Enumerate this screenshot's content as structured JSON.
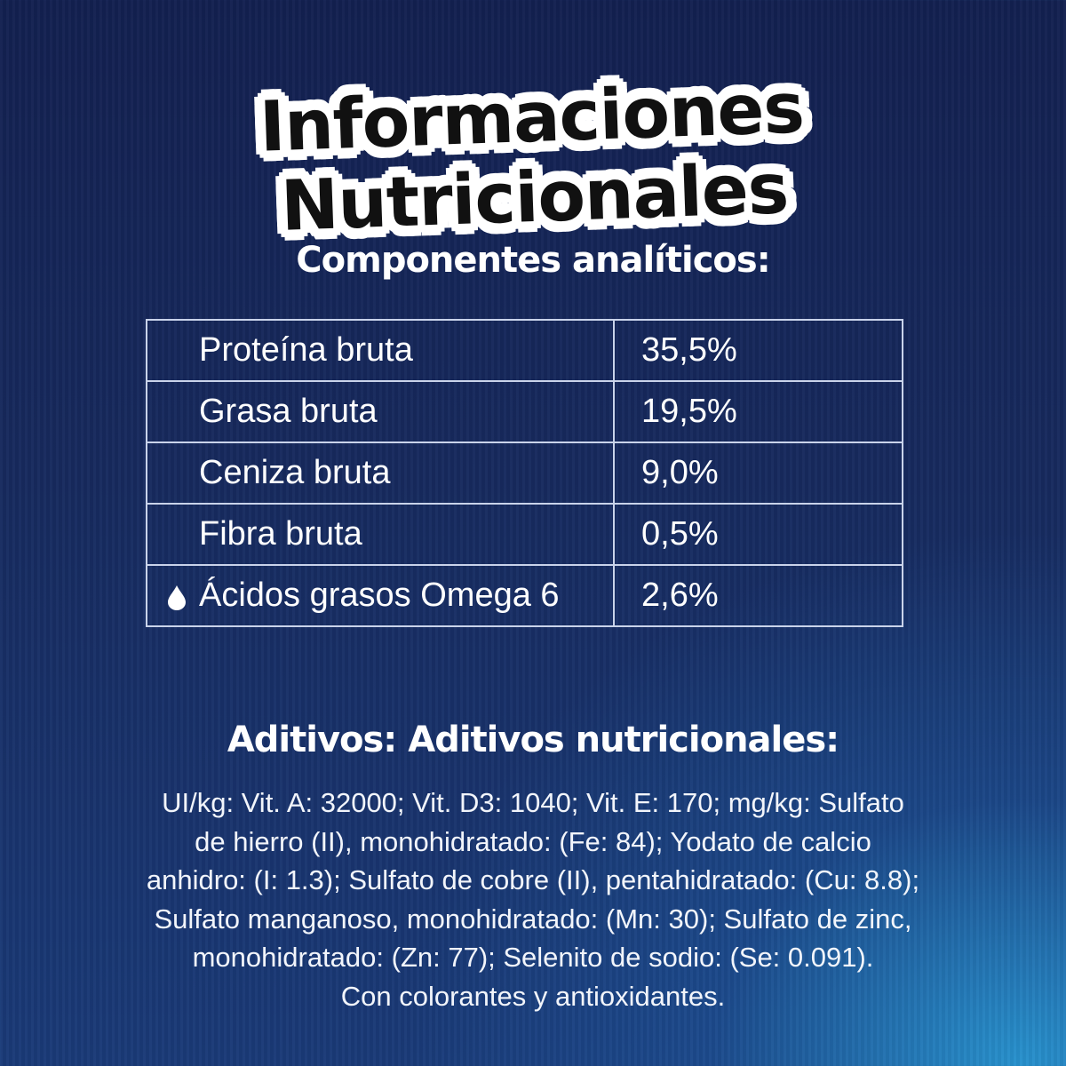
{
  "title": "Informaciones Nutricionales",
  "components": {
    "heading": "Componentes analíticos:",
    "rows": [
      {
        "label": "Proteína bruta",
        "value": "35,5%"
      },
      {
        "label": "Grasa bruta",
        "value": "19,5%"
      },
      {
        "label": "Ceniza bruta",
        "value": "9,0%"
      },
      {
        "label": "Fibra bruta",
        "value": "0,5%"
      },
      {
        "label": "Ácidos grasos Omega 6",
        "value": "2,6%",
        "icon": "water-drop-icon"
      }
    ]
  },
  "additives": {
    "heading": "Aditivos: Aditivos nutricionales:",
    "lines": [
      "UI/kg: Vit. A: 32000; Vit. D3: 1040; Vit. E: 170; mg/kg: Sulfato",
      "de hierro (II), monohidratado: (Fe: 84); Yodato de calcio",
      "anhidro: (I: 1.3); Sulfato de cobre (II), pentahidratado: (Cu: 8.8);",
      "Sulfato manganoso, monohidratado: (Mn: 30); Sulfato de zinc,",
      "monohidratado: (Zn: 77); Selenito de sodio: (Se: 0.091).",
      "Con colorantes y antioxidantes."
    ]
  }
}
